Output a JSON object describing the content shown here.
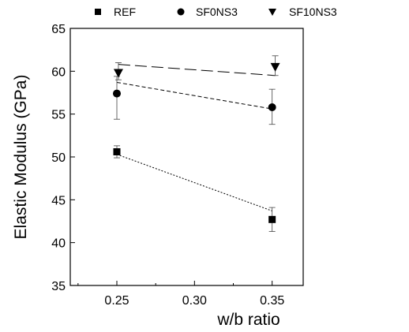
{
  "chart_data": {
    "type": "scatter",
    "xlabel": "w/b ratio",
    "ylabel": "Elastic Modulus (GPa)",
    "xlim": [
      0.22,
      0.37
    ],
    "ylim": [
      35,
      65
    ],
    "xticks": [
      0.25,
      0.3,
      0.35
    ],
    "xtick_labels": [
      "0.25",
      "0.30",
      "0.35"
    ],
    "yticks": [
      35,
      40,
      45,
      50,
      55,
      60,
      65
    ],
    "ytick_labels": [
      "35",
      "40",
      "45",
      "50",
      "55",
      "60",
      "65"
    ],
    "grid": false,
    "legend_position": "top",
    "series": [
      {
        "name": "REF",
        "marker": "square",
        "color": "#000000",
        "line_style": "dotted",
        "x": [
          0.25,
          0.35
        ],
        "y": [
          50.6,
          42.7
        ],
        "error_low": [
          49.9,
          41.3
        ],
        "error_high": [
          51.3,
          44.1
        ],
        "trend_y": [
          50.3,
          43.7
        ]
      },
      {
        "name": "SF0NS3",
        "marker": "circle",
        "color": "#000000",
        "line_style": "short-dash",
        "x": [
          0.25,
          0.35
        ],
        "y": [
          57.4,
          55.8
        ],
        "error_low": [
          54.4,
          53.8
        ],
        "error_high": [
          59.4,
          57.9
        ],
        "trend_y": [
          58.7,
          55.6
        ]
      },
      {
        "name": "SF10NS3",
        "marker": "triangle-down",
        "color": "#000000",
        "line_style": "long-dash",
        "x": [
          0.251,
          0.352
        ],
        "y": [
          59.8,
          60.5
        ],
        "error_low": [
          59.0,
          59.5
        ],
        "error_high": [
          61.0,
          61.8
        ],
        "trend_y": [
          60.8,
          59.5
        ]
      }
    ]
  }
}
